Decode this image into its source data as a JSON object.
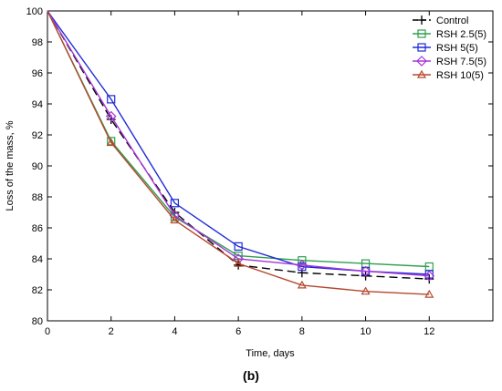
{
  "chart_data": {
    "type": "line",
    "title": "",
    "xlabel": "Time, days",
    "ylabel": "Loss of the mass, %",
    "caption": "(b)",
    "x": [
      0,
      2,
      4,
      6,
      8,
      10,
      12
    ],
    "xlim": [
      0,
      14
    ],
    "ylim": [
      80,
      100
    ],
    "xticks": [
      0,
      2,
      4,
      6,
      8,
      10,
      12
    ],
    "yticks": [
      80,
      82,
      84,
      86,
      88,
      90,
      92,
      94,
      96,
      98,
      100
    ],
    "grid": false,
    "legend_position": "top-right",
    "series": [
      {
        "name": "Control",
        "color": "#000000",
        "marker": "plus",
        "dash": "dashed",
        "values": [
          100,
          93.0,
          87.0,
          83.6,
          83.1,
          82.9,
          82.7
        ]
      },
      {
        "name": "RSH 2.5(5)",
        "color": "#2e9e4f",
        "marker": "square",
        "dash": "solid",
        "values": [
          100,
          91.6,
          86.7,
          84.2,
          83.9,
          83.7,
          83.5
        ]
      },
      {
        "name": "RSH 5(5)",
        "color": "#1f2bd6",
        "marker": "square",
        "dash": "solid",
        "values": [
          100,
          94.3,
          87.6,
          84.8,
          83.5,
          83.2,
          83.0
        ]
      },
      {
        "name": "RSH 7.5(5)",
        "color": "#a536d8",
        "marker": "diamond",
        "dash": "solid",
        "values": [
          100,
          93.2,
          86.8,
          84.0,
          83.6,
          83.2,
          82.9
        ]
      },
      {
        "name": "RSH 10(5)",
        "color": "#b5482e",
        "marker": "triangle",
        "dash": "solid",
        "values": [
          100,
          91.5,
          86.5,
          83.7,
          82.3,
          81.9,
          81.7
        ]
      }
    ]
  }
}
